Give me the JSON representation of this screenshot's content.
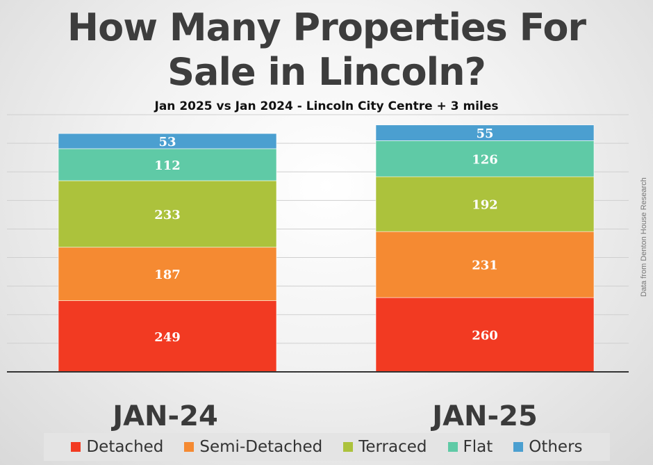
{
  "header": {
    "title_line_1": "How Many Properties For",
    "title_line_2": "Sale in Lincoln?",
    "subtitle": "Jan 2025 vs Jan 2024 - Lincoln City Centre + 3 miles",
    "side_note": "Data from Denton House Research"
  },
  "chart_data": {
    "type": "bar",
    "stacked": true,
    "title": "How Many Properties For Sale in Lincoln?",
    "subtitle": "Jan 2025 vs Jan 2024 - Lincoln City Centre + 3 miles",
    "categories": [
      "JAN-24",
      "JAN-25"
    ],
    "series": [
      {
        "name": "Detached",
        "color": "#f23a22",
        "values": [
          249,
          260
        ]
      },
      {
        "name": "Semi-Detached",
        "color": "#f58a32",
        "values": [
          187,
          231
        ]
      },
      {
        "name": "Terraced",
        "color": "#acc23c",
        "values": [
          233,
          192
        ]
      },
      {
        "name": "Flat",
        "color": "#5fcaa6",
        "values": [
          112,
          126
        ]
      },
      {
        "name": "Others",
        "color": "#4b9fd0",
        "values": [
          53,
          55
        ]
      }
    ],
    "ylim": [
      0,
      900
    ],
    "grid": true,
    "legend_position": "bottom"
  }
}
